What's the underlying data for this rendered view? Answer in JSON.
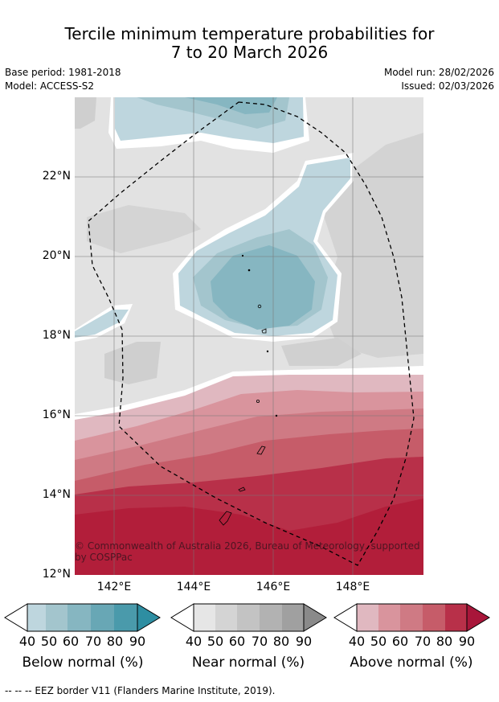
{
  "title_line1": "Tercile minimum temperature probabilities for",
  "title_line2": "7 to 20 March 2026",
  "meta": {
    "base_period": "Base period: 1981-2018",
    "model": "Model: ACCESS-S2",
    "model_run": "Model run: 28/02/2026",
    "issued": "Issued: 02/03/2026"
  },
  "latitudes": [
    "22°N",
    "20°N",
    "18°N",
    "16°N",
    "14°N",
    "12°N"
  ],
  "longitudes": [
    "142°E",
    "144°E",
    "146°E",
    "148°E"
  ],
  "copyright": "© Commonwealth of Australia 2026, Bureau of Meteorology, supported by COSPPac",
  "legends": [
    {
      "title": "Below normal (%)",
      "ticks": [
        "40",
        "50",
        "60",
        "70",
        "80",
        "90"
      ],
      "colors": [
        "#bed6de",
        "#a3c5cd",
        "#86b6c1",
        "#68a7b5",
        "#4a9aab",
        "#2e8ea2"
      ]
    },
    {
      "title": "Near normal (%)",
      "ticks": [
        "40",
        "50",
        "60",
        "70",
        "80",
        "90"
      ],
      "colors": [
        "#e6e6e6",
        "#d4d4d4",
        "#c3c3c3",
        "#b2b2b2",
        "#a0a0a0",
        "#8a8a8a"
      ]
    },
    {
      "title": "Above normal (%)",
      "ticks": [
        "40",
        "50",
        "60",
        "70",
        "80",
        "90"
      ],
      "colors": [
        "#e0b8c0",
        "#d9949d",
        "#cf7a84",
        "#c65c69",
        "#b83049",
        "#a8163a"
      ]
    }
  ],
  "footer": "--  --  -- EEZ border V11 (Flanders Marine Institute, 2019).",
  "colors": {
    "near_background": "#dedede",
    "blue_light": "#bed6de",
    "blue_mid": "#9dc2cc",
    "blue_dark": "#86b6c1",
    "red_light": "#d9949d",
    "red_mid": "#c65c69",
    "red_dark": "#b21e3a"
  }
}
